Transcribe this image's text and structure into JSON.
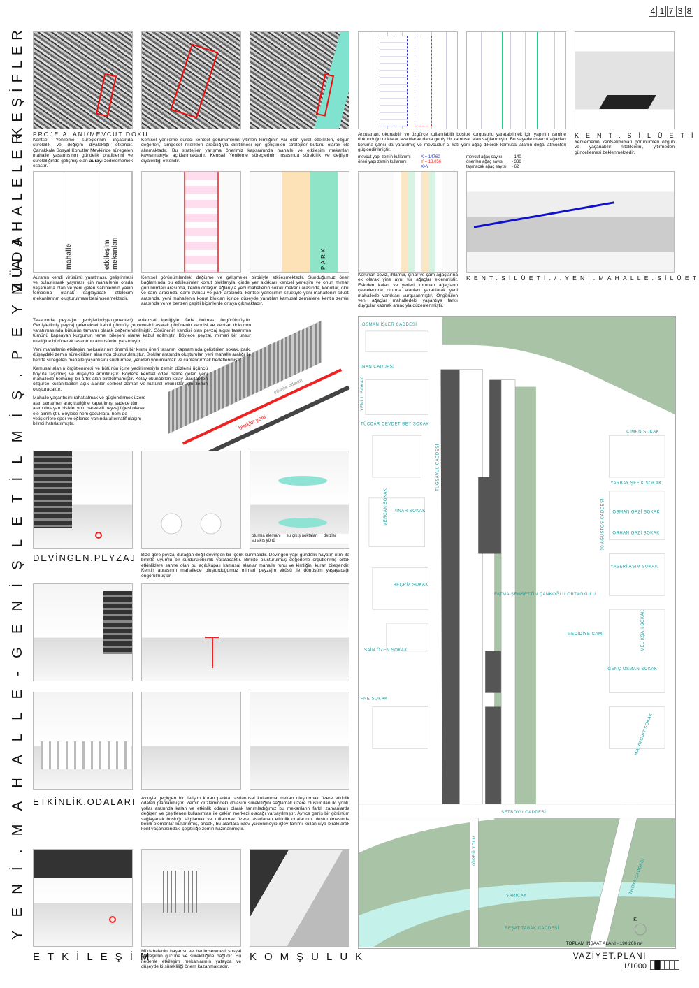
{
  "sheet_code": [
    "4",
    "1",
    "7",
    "3",
    "8"
  ],
  "sections": {
    "kesifler": "KEŞİFLER",
    "mudahaleler": "MÜDAHALELER",
    "peyzaj": "YENİ.MAHALLE-GENİŞLETİLMİŞ.PEYZAJ"
  },
  "kesifler": {
    "caption1": "PROJE.ALANI/MEVCUT.DOKU",
    "text1": "Kentsel Yenileme süreçlerinin inşasında süreklilik ve değişim diyalektiği etkendir. Çanakkale Sosyal Konutlar Mevkiinde süregelen mahalle yaşantısının gündelik pratiklerini ve sürekliliğinde gelişmiş olan",
    "text1_bold": "aura",
    "text1_end": "yı zedelememek esastır.",
    "text2": "Kentsel yenileme süreci kentsel görünümlerin yitirilen kimliğinin var olan yerel özellikleri, özgün değerleri, simgesel nitelikleri aracılığıyla diriltilmesi için geliştirilen stratejiler bütünü olarak ele alınmaktadır. Bu stratejiler yarışma önerimiz kapsamında mahalle ve etkileşim mekanları kavramlarıyla açıklanmaktadır. Kentsel Yenileme süreçlerinin inşasında süreklilik ve değişim diyalektiği etkendir.",
    "text3": "Arzulanan, okunabilir ve özgürce kullanılabilir boşluk kurgusunu yaratabilmek için yapının zemine dokunduğu noktalar azaltılarak daha geniş bir kamusal alan sağlanmıştır. Bu sayede mevcut ağaçları koruma şansı da yaratılmış ve mevcudun 3 katı yeni ağaç dikerek kamusal alanın doğal atmosferi güçlendirilmiştir.",
    "stats_left": [
      {
        "label": "mevcut yapı zemin kullanımı",
        "value": "X = 14760",
        "color": "#2233dd"
      },
      {
        "label": "öneri yapı zemin kullanımı",
        "value": "Y = 13.056",
        "color": "#ee2222"
      },
      {
        "label": "",
        "value": "X>Y",
        "color": "#2233dd"
      }
    ],
    "stats_right": [
      {
        "label": "mevcut ağaç sayısı",
        "value": "140"
      },
      {
        "label": "önerilen ağaç sayısı",
        "value": "336"
      },
      {
        "label": "taşınacak ağaç sayısı",
        "value": "62"
      }
    ],
    "caption6": "KENT.SİLÜETİ",
    "text6": "Yenilemenin kentsel/mimari görünümleri özgün ve yaşanabilir niteliklerini, yitirmeden güncellemesi beklenmektedir.",
    "street_label": "CADDE"
  },
  "mudahaleler": {
    "diag_labels": [
      "mahalle",
      "etkileşim mekanları"
    ],
    "park_label": "PARK",
    "text1": "Auranın kendi virüsünü yaratması, geliştirmesi ve bulaştırarak yayması için mahallenin orada yaşamakta olan ve yeni gelen sakinlerinin yakın temasına olanak sağlayacak etkileşim mekanlarının oluşturulması benimsenmektedir.",
    "text2": "Kentsel görünümlerdeki değişme ve gelişmeler birbiriyle etkileşmektedir. Sunduğumuz öneri bağlamında bu etkileşimler konut bloklarıyla içinde yer aldıkları kentsel yerleşim ve onun mimari görünümleri arasında, kentin dolaşım ağlarıyla yeni mahallenin sokak mekanı arasında, konutlar, okul ve cami arasında, cami avlusu ve park arasında, kentsel yerleşimin siluetiyle yeni mahallenin silueti arasında, yeni mahallenin konut blokları içinde düşeyde yaratılan kamusal zeminlerle kentin zemini arasında ve ve benzeri çeşitli biçimlerde ortaya çıkmaktadır.",
    "text3": "Korunan ceviz, ıhlamur, çınar ve çam ağaçlarına ek olarak yine aynı tür ağaçlar eklenmiştir. Eskiden kalan ve yerleri korunan ağaçların çevrelerinde oturma alanları yaratılarak yeni mahallede varlıkları vurgulanmıştır. Öngörülen yeni ağaçlar mahalledeki yaşantıya farklı duygular katmak amacıyla düzenlenmiştir.",
    "caption": "KENT.SİLÜETİ./.YENİ.MAHALLE.SİLÜETİ"
  },
  "peyzaj": {
    "paragraphs": [
      "Tasarımda peyzajın genişletilmiş(augmented) anlamsal içeriğiyle ifade bulması öngörülmüştür. Genişletilmiş peyzaj geleneksel kabul görmüş çerçevesini aşarak görünenin kendisi ve kentsel dokunun yaratılmasında bütünün tamamı olarak değerlendirilmiştir. Görünenin kendisi olan peyzaj algısı tasarımın tümünü kapsayan kurgunun temel bileşeni olarak kabul edilmiştir. Böylece peyzaj, mimari bir unsur niteliğine bürünerek tasarımın atmosferini yaratmıştır.",
      "Yeni mahallenin etkileşim mekanlarının önemli bir kısmı öneri tasarım kapsamında geliştirilen sokak, park, düşeydeki zemin süreklilikleri alanında oluşturulmuştur. Bloklar arasında oluşturulan yeni mahalle aralığı ile kentte süregelen mahalle yaşantısını sürdürmek, yeniden yorumlamak ve canlandırmak hedeflenmiştir.",
      "Kamusal alanın örgütlenmesi ve bütünün içine yedirilmesiyle zemin düzlemi üçüncü boyuta taşınmış ve düşeyde artırılmıştır. Böylece kentsel odak haline gelen yeni mahallede herhangi bir artık alan bırakılmamıştır. Kolay okunabilen kolay ulaşılabilen özgürce kullanılabilen açık alanlar serbest zaman ve kültürel etkinlikler için zemin oluşturacaktır.",
      "Mahalle yaşantısını rahatlatmak ve güçlendirmek üzere alan tamamen araç trafiğine kapatılmış, sadece tüm alanı dolaşan bisiklet yolu hareketli peyzaj öğesi olarak ele alınmıştır. Böylece hem çocuklara, hem de yetişkinlere spor ve eğlence yanında alternatif ulaşım bilinci hatırlatılmıştır."
    ],
    "axo_labels": [
      "bisiklet yolu",
      "etkinlik odaları"
    ],
    "devingen_title": "DEVİNGEN.PEYZAJ",
    "devingen_text": "Bize göre peyzaj durağan değil devingen bir içerik sunmalıdır. Devingen yapı gündelik hayatın ritmi ile birlikte uyumlu bir sürdürülebilirlik yaratacaktır. Birlikte oluşturulmuş değerlerle örgütlenmiş ortak etkinliklere sahne olan bu açık/kapalı kamusal alanlar mahalle ruhu ve kimliğini kuran bileşendir. Kentin aurasının mahallede oluşturduğumuz mimari peyzajın virüsü ile dönüşüm yaşayacağı öngörülmüştür.",
    "pool_labels": [
      "oturma elemanı",
      "su çıkış noktaları",
      "derzler",
      "su akış yönü"
    ],
    "etkinlik_title": "ETKİNLİK.ODALARI",
    "etkinlik_text": "Avluyla geçirgen bir iletişim kuran parkta rastlantısal kullanıma mekan oluşturmak üzere etkinlik odaları planlanmıştır. Zemin düzlemindeki dolaşım sürekliliğini sağlamak üzere oluşturulan iki yönlü yollar arasında kalan ve etkinlik odaları olarak tanımladığımız bu mekanların farklı zamanlarda değişen ve çeşitlenen kullanımları ile çekim merkezi olacağı varsayılmıştır. Ayrıca geniş bir görünüm sağlayacak boşluğu algılamak ve kullanmak üzere tasarlanan etkinlik odalarının oluşturulmasında belirli elemanlar kullanılmış, ancak, bu alanlara işlev yüklenmeyip işlev tanımı kullanıcıya bırakılarak kent yaşantısındaki çeşitliliğe zemin hazırlanmıştır.",
    "etkilesim_title": "ETKİLEŞİM",
    "etkilesim_text": "Müdahalenin başarısı ve benimsenmesi sosyal etkileşimin gücüne ve sürekliliğine bağlıdır. Bu nedenle etkileşim mekanlarının yatayda ve düşeyde ki sürekliliği önem kazanmaktadır.",
    "komsuluk_title": "KOMŞULUK"
  },
  "site_plan": {
    "streets": [
      "OSMAN İŞLER CADDESİ",
      "İNAN CADDESİ",
      "YENİ 1. SOKAK",
      "TÜCCAR CEVDET BEY SOKAK",
      "MERCAN SOKAK",
      "PINAR SOKAK",
      "TUĞSAVUL CADDESİ",
      "BEÇRİZ SOKAK",
      "SAİN ÖZEN SOKAK",
      "FNE SOKAK",
      "30 AĞUSTOS CADDESİ",
      "ÇİMEN SOKAK",
      "YARBAY ŞEFİK SOKAK",
      "OSMAN GAZİ SOKAK",
      "ORHAN GAZİ SOKAK",
      "YASERİ ASIM SOKAK",
      "MELİKŞAH SOKAK",
      "GENÇ OSMAN SOKAK",
      "MALAZGİRT SOKAK",
      "SETBOYU CADDESİ",
      "TROYA CADDESİ",
      "KÖPRÜ YOLU",
      "REŞAT TABAK CADDESİ"
    ],
    "landmarks": [
      "FATMA ŞEMSETTİN ÇANKOĞLU ORTAOKULU",
      "MECİDİYE CAMİ",
      "SARIÇAY"
    ],
    "total_area": "TOPLAM İNŞAAT ALANI - 190.266 m²",
    "title": "VAZİYET.PLANI",
    "scale": "1/1000",
    "north": "K",
    "colors": {
      "green": "#a8c3a6",
      "water": "#c4f1ea",
      "building": "#555555",
      "street_text": "#1a9a9a"
    }
  }
}
